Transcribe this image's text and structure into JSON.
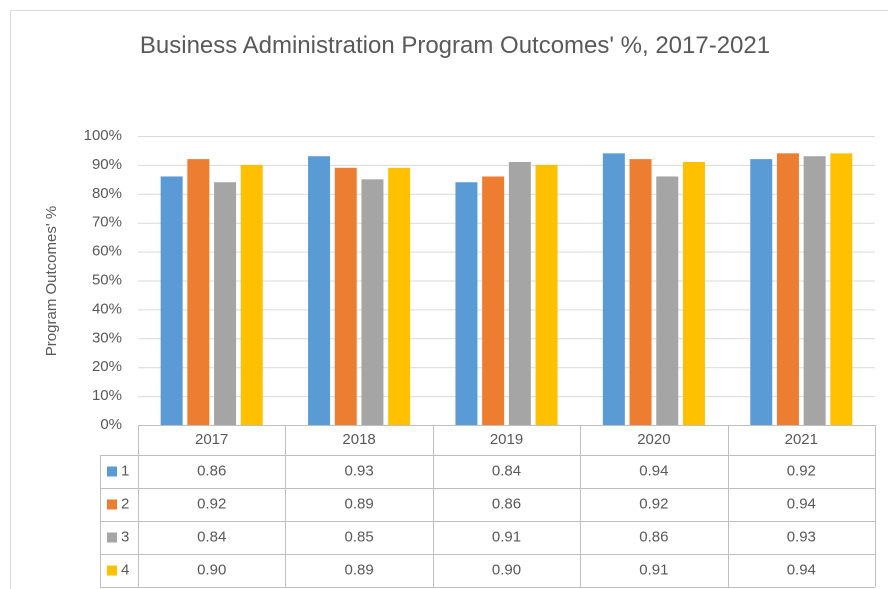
{
  "chart_data": {
    "type": "bar",
    "title": "Business Administration Program Outcomes' %, 2017-2021",
    "y_label": "Program Outcomes' %",
    "categories": [
      "2017",
      "2018",
      "2019",
      "2020",
      "2021"
    ],
    "series": [
      {
        "name": "1",
        "color": "#5b9bd5",
        "values": [
          0.86,
          0.93,
          0.84,
          0.94,
          0.92
        ],
        "value_labels": [
          "0.86",
          "0.93",
          "0.84",
          "0.94",
          "0.92"
        ]
      },
      {
        "name": "2",
        "color": "#ed7d31",
        "values": [
          0.92,
          0.89,
          0.86,
          0.92,
          0.94
        ],
        "value_labels": [
          "0.92",
          "0.89",
          "0.86",
          "0.92",
          "0.94"
        ]
      },
      {
        "name": "3",
        "color": "#a5a5a5",
        "values": [
          0.84,
          0.85,
          0.91,
          0.86,
          0.93
        ],
        "value_labels": [
          "0.84",
          "0.85",
          "0.91",
          "0.86",
          "0.93"
        ]
      },
      {
        "name": "4",
        "color": "#ffc000",
        "values": [
          0.9,
          0.89,
          0.9,
          0.91,
          0.94
        ],
        "value_labels": [
          "0.90",
          "0.89",
          "0.90",
          "0.91",
          "0.94"
        ]
      }
    ],
    "ylim": [
      0,
      1
    ],
    "yticks": [
      {
        "value": 0,
        "label": "0%"
      },
      {
        "value": 0.1,
        "label": "10%"
      },
      {
        "value": 0.2,
        "label": "20%"
      },
      {
        "value": 0.3,
        "label": "30%"
      },
      {
        "value": 0.4,
        "label": "40%"
      },
      {
        "value": 0.5,
        "label": "50%"
      },
      {
        "value": 0.6,
        "label": "60%"
      },
      {
        "value": 0.7,
        "label": "70%"
      },
      {
        "value": 0.8,
        "label": "80%"
      },
      {
        "value": 0.9,
        "label": "90%"
      },
      {
        "value": 1,
        "label": "100%"
      }
    ],
    "grid": true
  }
}
